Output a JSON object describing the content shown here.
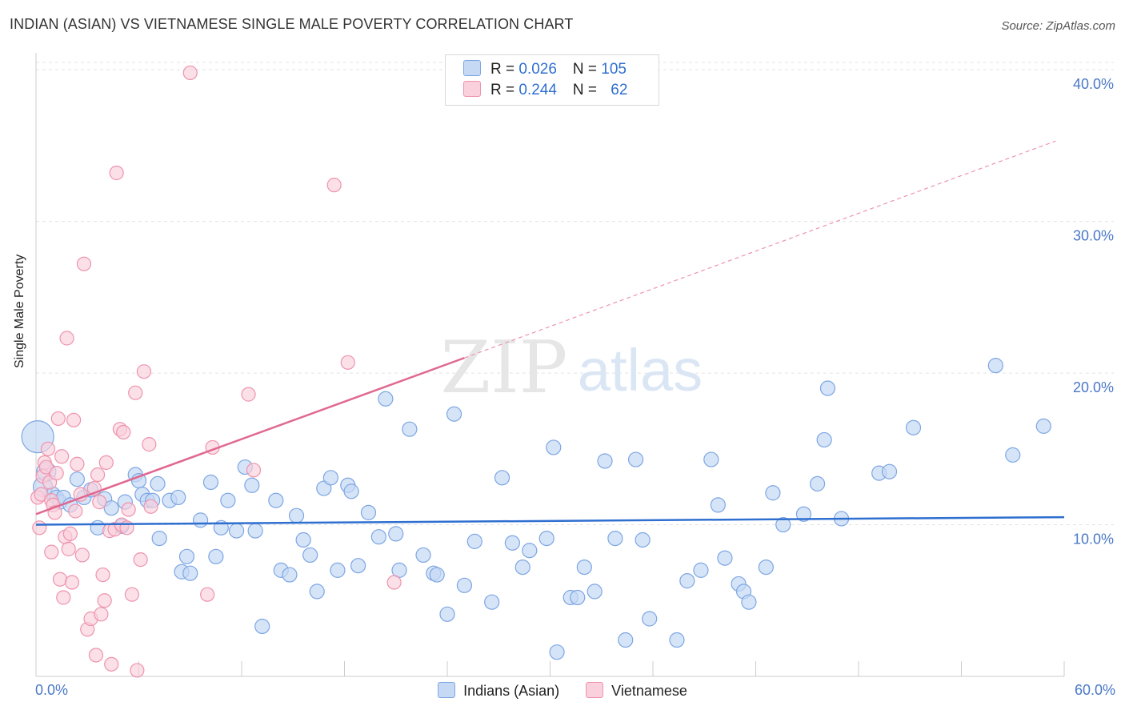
{
  "header": {
    "title": "INDIAN (ASIAN) VS VIETNAMESE SINGLE MALE POVERTY CORRELATION CHART",
    "source": "Source: ZipAtlas.com"
  },
  "watermark": {
    "zip": "ZIP",
    "atlas": "atlas"
  },
  "legend_top": {
    "rows": [
      {
        "r_label": "R = ",
        "r_value": "0.026",
        "n_label": "N = ",
        "n_value": "105"
      },
      {
        "r_label": "R = ",
        "r_value": "0.244",
        "n_label": "N = ",
        "n_value": "62"
      }
    ]
  },
  "colors": {
    "blue_fill": "#c5d9f5",
    "blue_stroke": "#7da6e3",
    "blue_line": "#2f6fd0",
    "pink_fill": "#f9d0dc",
    "pink_stroke": "#ee93ad",
    "pink_line": "#e06890",
    "grid": "#e3e3e3",
    "axis_text": "#4a78c8"
  },
  "chart_data": {
    "type": "scatter",
    "title": "INDIAN (ASIAN) VS VIETNAMESE SINGLE MALE POVERTY CORRELATION CHART",
    "xlabel": "",
    "ylabel": "Single Male Poverty",
    "x_range_labels": [
      "0.0%",
      "60.0%"
    ],
    "xlim": [
      0,
      60
    ],
    "ylim": [
      0,
      40.8
    ],
    "yticks": [
      10,
      20,
      30,
      40
    ],
    "ytick_labels": [
      "10.0%",
      "20.0%",
      "30.0%",
      "40.0%"
    ],
    "grid": true,
    "legend_position": "bottom-center",
    "series": [
      {
        "name": "Indians (Asian)",
        "r": 0.026,
        "n": 105,
        "color": "#7da6e3",
        "trend": {
          "x": [
            0,
            60
          ],
          "y": [
            10.0,
            10.5
          ]
        },
        "points": [
          [
            0.1,
            15.8
          ],
          [
            0.4,
            12.5
          ],
          [
            0.6,
            13.5
          ],
          [
            1.0,
            12.0
          ],
          [
            1.2,
            11.8
          ],
          [
            1.4,
            11.5
          ],
          [
            1.6,
            11.8
          ],
          [
            2.0,
            11.3
          ],
          [
            2.4,
            13.0
          ],
          [
            2.8,
            11.8
          ],
          [
            3.2,
            12.3
          ],
          [
            3.6,
            9.8
          ],
          [
            4.0,
            11.7
          ],
          [
            4.4,
            11.1
          ],
          [
            5.0,
            9.9
          ],
          [
            5.2,
            11.5
          ],
          [
            5.8,
            13.3
          ],
          [
            6.0,
            12.9
          ],
          [
            6.2,
            12.0
          ],
          [
            6.5,
            11.6
          ],
          [
            6.8,
            11.6
          ],
          [
            7.1,
            12.7
          ],
          [
            7.2,
            9.1
          ],
          [
            7.8,
            11.6
          ],
          [
            8.3,
            11.8
          ],
          [
            8.5,
            6.9
          ],
          [
            8.8,
            7.9
          ],
          [
            9.0,
            6.8
          ],
          [
            9.6,
            10.3
          ],
          [
            10.2,
            12.8
          ],
          [
            10.5,
            7.9
          ],
          [
            10.8,
            9.8
          ],
          [
            11.2,
            11.6
          ],
          [
            11.7,
            9.6
          ],
          [
            12.2,
            13.8
          ],
          [
            12.6,
            12.6
          ],
          [
            12.8,
            9.6
          ],
          [
            13.2,
            3.3
          ],
          [
            14.0,
            11.6
          ],
          [
            14.3,
            7.0
          ],
          [
            14.8,
            6.7
          ],
          [
            15.2,
            10.6
          ],
          [
            15.6,
            9.0
          ],
          [
            16.0,
            8.0
          ],
          [
            16.4,
            5.6
          ],
          [
            16.8,
            12.4
          ],
          [
            17.2,
            13.1
          ],
          [
            17.6,
            7.0
          ],
          [
            18.2,
            12.6
          ],
          [
            18.4,
            12.2
          ],
          [
            18.8,
            7.3
          ],
          [
            19.4,
            10.8
          ],
          [
            20.0,
            9.2
          ],
          [
            20.4,
            18.3
          ],
          [
            21.0,
            9.4
          ],
          [
            21.2,
            7.0
          ],
          [
            21.8,
            16.3
          ],
          [
            22.6,
            8.0
          ],
          [
            23.2,
            6.8
          ],
          [
            23.4,
            6.7
          ],
          [
            24.0,
            4.1
          ],
          [
            24.4,
            17.3
          ],
          [
            25.0,
            6.0
          ],
          [
            25.6,
            8.9
          ],
          [
            26.6,
            4.9
          ],
          [
            27.2,
            13.1
          ],
          [
            27.8,
            8.8
          ],
          [
            28.4,
            7.2
          ],
          [
            28.8,
            8.3
          ],
          [
            30.4,
            1.6
          ],
          [
            29.8,
            9.1
          ],
          [
            30.2,
            15.1
          ],
          [
            31.2,
            5.2
          ],
          [
            31.6,
            5.2
          ],
          [
            32.0,
            7.2
          ],
          [
            32.6,
            5.6
          ],
          [
            33.2,
            14.2
          ],
          [
            33.8,
            9.1
          ],
          [
            34.4,
            2.4
          ],
          [
            35.0,
            14.3
          ],
          [
            35.4,
            9.0
          ],
          [
            35.8,
            3.8
          ],
          [
            37.4,
            2.4
          ],
          [
            38.0,
            6.3
          ],
          [
            38.8,
            7.0
          ],
          [
            39.4,
            14.3
          ],
          [
            39.8,
            11.3
          ],
          [
            40.2,
            7.8
          ],
          [
            41.0,
            6.1
          ],
          [
            41.3,
            5.6
          ],
          [
            41.6,
            4.9
          ],
          [
            42.6,
            7.2
          ],
          [
            43.0,
            12.1
          ],
          [
            43.6,
            10.0
          ],
          [
            44.8,
            10.7
          ],
          [
            45.6,
            12.7
          ],
          [
            46.0,
            15.6
          ],
          [
            46.2,
            19.0
          ],
          [
            47.0,
            10.4
          ],
          [
            49.2,
            13.4
          ],
          [
            49.8,
            13.5
          ],
          [
            51.2,
            16.4
          ],
          [
            56.0,
            20.5
          ],
          [
            57.0,
            14.6
          ],
          [
            58.8,
            16.5
          ]
        ]
      },
      {
        "name": "Vietnamese",
        "r": 0.244,
        "n": 62,
        "color": "#ee93ad",
        "trend": {
          "x": [
            0,
            25
          ],
          "y": [
            10.7,
            21.0
          ]
        },
        "trend_ext": {
          "x": [
            25,
            59.5
          ],
          "y": [
            21.0,
            35.3
          ]
        },
        "points": [
          [
            0.1,
            11.8
          ],
          [
            0.3,
            12.0
          ],
          [
            0.4,
            13.2
          ],
          [
            0.5,
            14.1
          ],
          [
            0.6,
            13.8
          ],
          [
            0.7,
            15.0
          ],
          [
            0.8,
            12.8
          ],
          [
            0.9,
            11.6
          ],
          [
            1.0,
            11.3
          ],
          [
            1.1,
            10.8
          ],
          [
            1.2,
            13.4
          ],
          [
            1.3,
            17.0
          ],
          [
            1.4,
            6.4
          ],
          [
            1.5,
            14.5
          ],
          [
            1.6,
            5.2
          ],
          [
            1.7,
            9.2
          ],
          [
            1.8,
            22.3
          ],
          [
            1.9,
            8.4
          ],
          [
            2.0,
            9.4
          ],
          [
            2.1,
            6.2
          ],
          [
            2.2,
            16.9
          ],
          [
            2.4,
            14.0
          ],
          [
            2.6,
            12.0
          ],
          [
            2.7,
            8.0
          ],
          [
            2.8,
            27.2
          ],
          [
            3.0,
            3.1
          ],
          [
            3.2,
            3.8
          ],
          [
            3.4,
            12.4
          ],
          [
            3.5,
            1.4
          ],
          [
            3.6,
            13.3
          ],
          [
            3.8,
            4.1
          ],
          [
            3.9,
            6.7
          ],
          [
            4.0,
            5.0
          ],
          [
            4.1,
            14.1
          ],
          [
            4.3,
            9.6
          ],
          [
            4.4,
            0.8
          ],
          [
            4.6,
            9.7
          ],
          [
            4.7,
            33.2
          ],
          [
            4.9,
            16.3
          ],
          [
            5.0,
            10.0
          ],
          [
            5.1,
            16.1
          ],
          [
            5.3,
            9.8
          ],
          [
            5.6,
            5.4
          ],
          [
            5.8,
            18.7
          ],
          [
            5.9,
            0.4
          ],
          [
            6.1,
            7.7
          ],
          [
            6.3,
            20.1
          ],
          [
            6.6,
            15.3
          ],
          [
            6.7,
            11.2
          ],
          [
            9.0,
            39.8
          ],
          [
            10.0,
            5.4
          ],
          [
            10.3,
            15.1
          ],
          [
            12.4,
            18.6
          ],
          [
            12.7,
            13.6
          ],
          [
            17.4,
            32.4
          ],
          [
            18.2,
            20.7
          ],
          [
            20.9,
            6.2
          ],
          [
            0.2,
            9.8
          ],
          [
            0.9,
            8.2
          ],
          [
            2.3,
            10.9
          ],
          [
            3.7,
            11.5
          ],
          [
            5.4,
            11.0
          ]
        ]
      }
    ]
  }
}
